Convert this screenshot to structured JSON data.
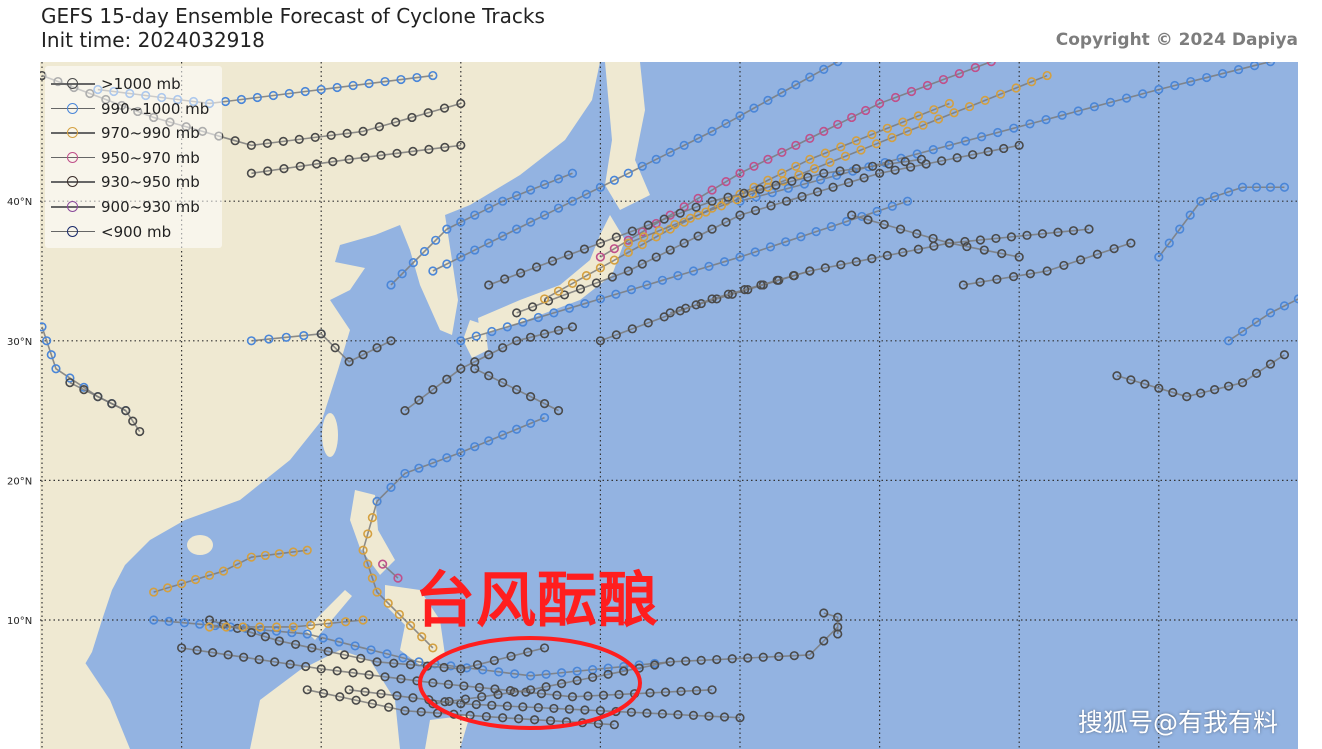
{
  "header": {
    "title_line1": "GEFS 15-day Ensemble Forecast of Cyclone Tracks",
    "title_line2": "Init time: 2024032918",
    "copyright": "Copyright © 2024 Dapiya"
  },
  "map": {
    "ocean_color": "#93b3e1",
    "land_color": "#efe9d2",
    "lat_labels": [
      "40°N",
      "30°N",
      "20°N",
      "10°N"
    ],
    "lat_values": [
      40,
      30,
      20,
      10
    ],
    "lon_gridlines": [
      100,
      110,
      120,
      130,
      140,
      150,
      160,
      170,
      180
    ],
    "extent": {
      "lon": [
        100,
        190
      ],
      "lat": [
        0.8,
        50
      ]
    }
  },
  "legend": {
    "items": [
      {
        "label": ">1000 mb",
        "color": "#4a4a4a"
      },
      {
        "label": "990~1000 mb",
        "color": "#4a86d8"
      },
      {
        "label": "970~990 mb",
        "color": "#d4a040"
      },
      {
        "label": "950~970 mb",
        "color": "#c0508a"
      },
      {
        "label": "930~950 mb",
        "color": "#3b2e2a"
      },
      {
        "label": "900~930 mb",
        "color": "#8a4a9a"
      },
      {
        "label": "<900 mb",
        "color": "#1a2a6a"
      }
    ]
  },
  "tracks": [
    {
      "cat": 0,
      "pts": [
        [
          150,
          3
        ],
        [
          140,
          3.5
        ],
        [
          130,
          4
        ],
        [
          122,
          5
        ]
      ]
    },
    {
      "cat": 0,
      "pts": [
        [
          148,
          5
        ],
        [
          138,
          4.5
        ],
        [
          128,
          5.5
        ],
        [
          120,
          6.5
        ],
        [
          110,
          8
        ]
      ]
    },
    {
      "cat": 1,
      "pts": [
        [
          145,
          7
        ],
        [
          135,
          6
        ],
        [
          127,
          7
        ],
        [
          119,
          9
        ],
        [
          108,
          10
        ]
      ]
    },
    {
      "cat": 0,
      "pts": [
        [
          157,
          9.5
        ],
        [
          155,
          7.5
        ],
        [
          145,
          7
        ],
        [
          135,
          5
        ],
        [
          128,
          4
        ]
      ]
    },
    {
      "cat": 0,
      "pts": [
        [
          141,
          2.5
        ],
        [
          133,
          3
        ],
        [
          126,
          3.5
        ],
        [
          119,
          5
        ]
      ]
    },
    {
      "cat": 0,
      "pts": [
        [
          136,
          8
        ],
        [
          130,
          6.5
        ],
        [
          124,
          7
        ],
        [
          117,
          8.5
        ],
        [
          112,
          10
        ]
      ]
    },
    {
      "cat": 0,
      "pts": [
        [
          156,
          10.5
        ],
        [
          157,
          10.2
        ],
        [
          157,
          9
        ]
      ]
    },
    {
      "cat": 2,
      "pts": [
        [
          128,
          8
        ],
        [
          124,
          12
        ],
        [
          123,
          15
        ],
        [
          124,
          18.5
        ]
      ]
    },
    {
      "cat": 1,
      "pts": [
        [
          124,
          18.5
        ],
        [
          126,
          20.5
        ],
        [
          130,
          22
        ],
        [
          136,
          24.5
        ]
      ]
    },
    {
      "cat": 3,
      "pts": [
        [
          124.4,
          14
        ],
        [
          125.5,
          13
        ]
      ]
    },
    {
      "cat": 2,
      "pts": [
        [
          119,
          15
        ],
        [
          115,
          14.5
        ],
        [
          113,
          13.5
        ],
        [
          108,
          12
        ]
      ]
    },
    {
      "cat": 2,
      "pts": [
        [
          123,
          10
        ],
        [
          118,
          9.5
        ],
        [
          112,
          9.5
        ]
      ]
    },
    {
      "cat": 0,
      "pts": [
        [
          126,
          25
        ],
        [
          130,
          28
        ],
        [
          134,
          30
        ],
        [
          138,
          31
        ]
      ]
    },
    {
      "cat": 0,
      "pts": [
        [
          131,
          28
        ],
        [
          137,
          25
        ]
      ]
    },
    {
      "cat": 0,
      "pts": [
        [
          134,
          32
        ],
        [
          142,
          35
        ],
        [
          150,
          39
        ],
        [
          160,
          42
        ],
        [
          170,
          44
        ]
      ]
    },
    {
      "cat": 1,
      "pts": [
        [
          130,
          30
        ],
        [
          140,
          33
        ],
        [
          150,
          36
        ],
        [
          162,
          40
        ]
      ]
    },
    {
      "cat": 2,
      "pts": [
        [
          136,
          33
        ],
        [
          145,
          38
        ],
        [
          155,
          43
        ],
        [
          165,
          47
        ]
      ]
    },
    {
      "cat": 3,
      "pts": [
        [
          140,
          36
        ],
        [
          150,
          42
        ],
        [
          160,
          47
        ],
        [
          168,
          50
        ]
      ]
    },
    {
      "cat": 1,
      "pts": [
        [
          128,
          35
        ],
        [
          138,
          40
        ],
        [
          148,
          45
        ],
        [
          157,
          50
        ]
      ]
    },
    {
      "cat": 0,
      "pts": [
        [
          145,
          32
        ],
        [
          155,
          35
        ],
        [
          165,
          37
        ],
        [
          175,
          38
        ]
      ]
    },
    {
      "cat": 1,
      "pts": [
        [
          150,
          40
        ],
        [
          165,
          44
        ],
        [
          180,
          48
        ],
        [
          188,
          50
        ]
      ]
    },
    {
      "cat": 0,
      "pts": [
        [
          140,
          30
        ],
        [
          148,
          33
        ],
        [
          155,
          35
        ]
      ]
    },
    {
      "cat": 0,
      "pts": [
        [
          166,
          34
        ],
        [
          172,
          35
        ],
        [
          178,
          37
        ]
      ]
    },
    {
      "cat": 2,
      "pts": [
        [
          142,
          37
        ],
        [
          152,
          41
        ],
        [
          162,
          45
        ],
        [
          172,
          49
        ]
      ]
    },
    {
      "cat": 0,
      "pts": [
        [
          132,
          34
        ],
        [
          140,
          37
        ],
        [
          148,
          40
        ],
        [
          156,
          42
        ],
        [
          163,
          43
        ]
      ]
    },
    {
      "cat": 0,
      "pts": [
        [
          100,
          49
        ],
        [
          108,
          46
        ],
        [
          115,
          44
        ],
        [
          123,
          45
        ],
        [
          130,
          47
        ]
      ]
    },
    {
      "cat": 1,
      "pts": [
        [
          104,
          48
        ],
        [
          112,
          47
        ],
        [
          120,
          48
        ],
        [
          128,
          49
        ]
      ]
    },
    {
      "cat": 0,
      "pts": [
        [
          115,
          42
        ],
        [
          122,
          43
        ],
        [
          130,
          44
        ]
      ]
    },
    {
      "cat": 1,
      "pts": [
        [
          100,
          31
        ],
        [
          101,
          28
        ],
        [
          104,
          26
        ],
        [
          106,
          25
        ]
      ]
    },
    {
      "cat": 0,
      "pts": [
        [
          102,
          27
        ],
        [
          106,
          25
        ],
        [
          107,
          23.5
        ]
      ]
    },
    {
      "cat": 1,
      "pts": [
        [
          115,
          30
        ],
        [
          120,
          30.5
        ]
      ]
    },
    {
      "cat": 0,
      "pts": [
        [
          120,
          30.5
        ],
        [
          122,
          28.5
        ],
        [
          125,
          30
        ]
      ]
    },
    {
      "cat": 1,
      "pts": [
        [
          125,
          34
        ],
        [
          129,
          38
        ],
        [
          133,
          40
        ],
        [
          138,
          42
        ]
      ]
    },
    {
      "cat": 0,
      "pts": [
        [
          177,
          27.5
        ],
        [
          182,
          26
        ],
        [
          186,
          27
        ],
        [
          189,
          29
        ]
      ]
    },
    {
      "cat": 1,
      "pts": [
        [
          185,
          30
        ],
        [
          188,
          32
        ],
        [
          190,
          33
        ]
      ]
    },
    {
      "cat": 1,
      "pts": [
        [
          180,
          36
        ],
        [
          183,
          40
        ],
        [
          186,
          41
        ],
        [
          189,
          41
        ]
      ]
    },
    {
      "cat": 0,
      "pts": [
        [
          158,
          39
        ],
        [
          165,
          37
        ],
        [
          170,
          36
        ]
      ]
    }
  ],
  "annotation": {
    "callout_text": "台风酝酿",
    "highlight_color": "#ff1e1e"
  },
  "watermark": "搜狐号@有我有料"
}
